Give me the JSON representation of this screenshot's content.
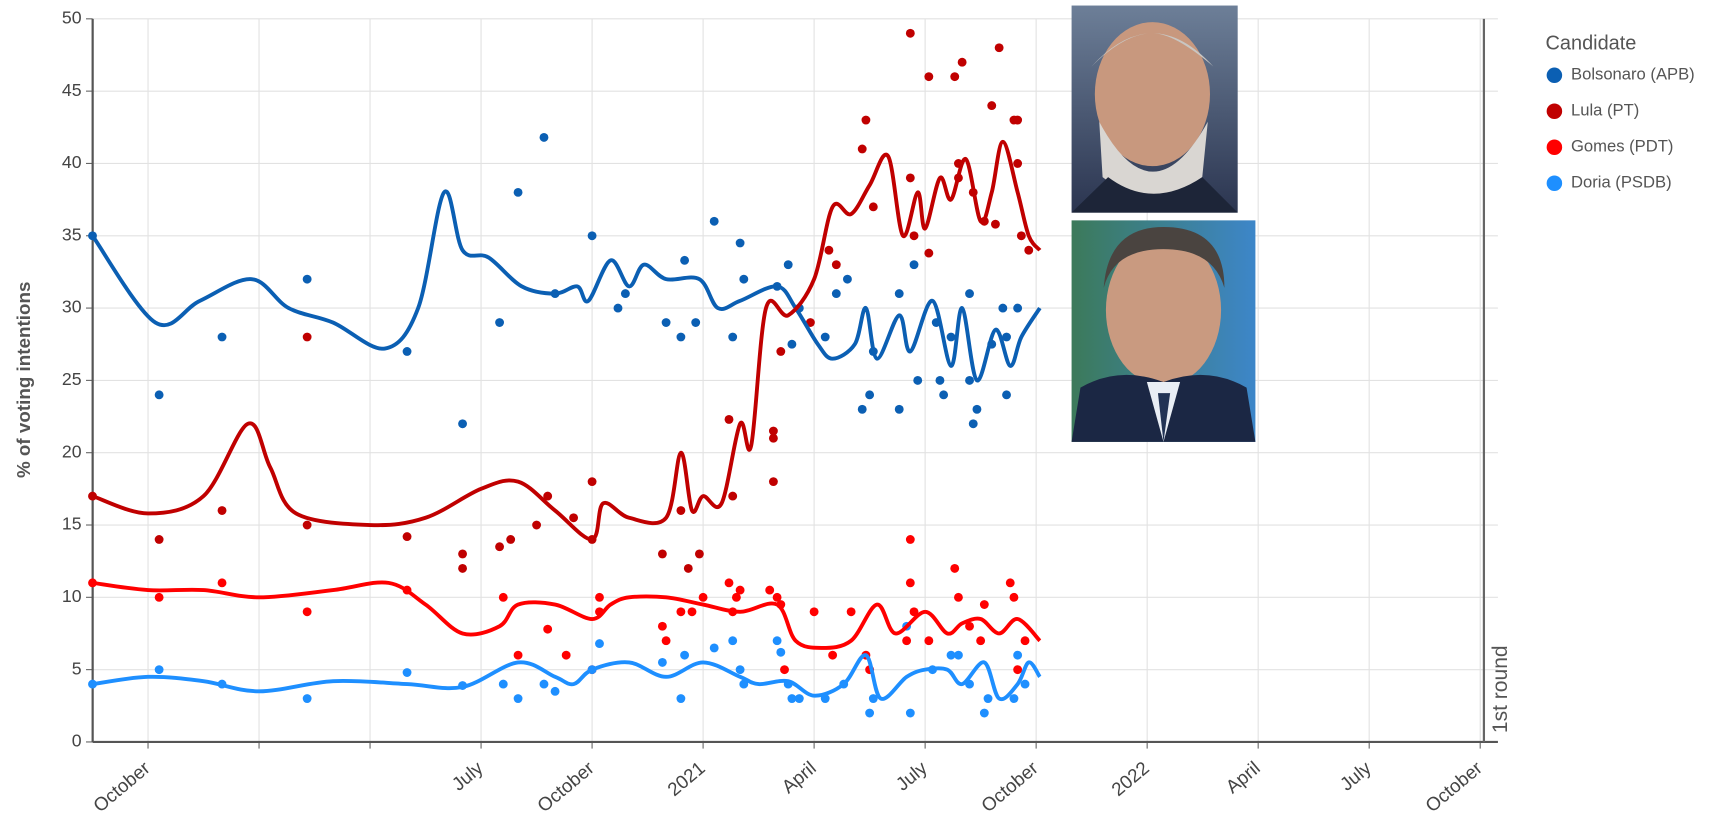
{
  "chart_data": {
    "type": "line",
    "y_label": "% of voting intentions",
    "legend_title": "Candidate",
    "legend_position": "right",
    "grid": true,
    "xlim": [
      -1.5,
      36.1
    ],
    "ylim": [
      0,
      50
    ],
    "yticks": [
      0,
      5,
      10,
      15,
      20,
      25,
      30,
      35,
      40,
      45,
      50
    ],
    "xticks": [
      {
        "value": 0,
        "label": "October"
      },
      {
        "value": 3,
        "label": null
      },
      {
        "value": 6,
        "label": null
      },
      {
        "value": 9,
        "label": "July"
      },
      {
        "value": 12,
        "label": "October"
      },
      {
        "value": 15,
        "label": "2021"
      },
      {
        "value": 18,
        "label": "April"
      },
      {
        "value": 21,
        "label": "July"
      },
      {
        "value": 24,
        "label": "October"
      },
      {
        "value": 27,
        "label": "2022"
      },
      {
        "value": 30,
        "label": "April"
      },
      {
        "value": 33,
        "label": "July"
      },
      {
        "value": 36,
        "label": "October"
      }
    ],
    "annotations": [
      {
        "x": 36.1,
        "text": "1st round"
      }
    ],
    "series": [
      {
        "name": "Bolsonaro (APB)",
        "color": "#0b5fb3",
        "x": [
          -1.5,
          0.3,
          2,
          4.3,
          7,
          8.5,
          9.5,
          10,
          10.7,
          11,
          12,
          12.7,
          12.9,
          14,
          14.5,
          14.4,
          14.8,
          15.3,
          15.8,
          16,
          16.1,
          17,
          17.3,
          17.4,
          17.6,
          18.3,
          18.6,
          18.9,
          19.3,
          19.5,
          19.6,
          20.3,
          20.3,
          20.7,
          20.8,
          21.3,
          21.4,
          21.5,
          21.7,
          22.2,
          22.3,
          22.4,
          22.2,
          22.8,
          23.1,
          23.2,
          23.2,
          23.5
        ],
        "values": [
          35,
          24,
          28,
          32,
          27,
          22,
          29,
          38,
          41.8,
          31,
          35,
          30,
          31,
          29,
          33.3,
          28,
          29,
          36,
          28,
          34.5,
          32,
          31.5,
          33,
          27.5,
          30,
          28,
          31,
          32,
          23,
          24,
          27,
          23,
          31,
          33,
          25,
          29,
          25,
          24,
          28,
          31,
          22,
          23,
          25,
          27.5,
          30,
          24,
          28,
          30
        ],
        "trend": {
          "x": [
            -1.5,
            0.2,
            1.4,
            2.8,
            3.8,
            5,
            6.4,
            7.3,
            8,
            8.5,
            9.2,
            10.1,
            11,
            11.6,
            11.9,
            12.5,
            13,
            13.4,
            14,
            14.9,
            15.4,
            16,
            17,
            17.5,
            18.1,
            18.5,
            19.1,
            19.4,
            19.7,
            20.3,
            20.6,
            21.2,
            21.7,
            22,
            22.4,
            22.9,
            23.3,
            23.6,
            24.1
          ],
          "values": [
            35,
            29,
            30.5,
            32,
            30,
            29,
            27.2,
            30,
            38,
            34,
            33.5,
            31.5,
            31,
            31.5,
            30.5,
            33.3,
            31.5,
            33,
            32,
            32,
            30,
            30.5,
            31.5,
            30,
            27.5,
            26.5,
            27.5,
            30,
            26.5,
            29.5,
            27,
            30.5,
            26,
            30,
            25,
            28.5,
            26,
            28,
            30
          ]
        }
      },
      {
        "name": "Lula (PT)",
        "color": "#c00000",
        "x": [
          -1.5,
          0.3,
          2,
          4.3,
          4.3,
          7,
          8.5,
          8.5,
          9.5,
          9.8,
          10.5,
          10.8,
          11.5,
          12,
          12,
          13.9,
          14.4,
          14.6,
          14.9,
          15.7,
          15.8,
          16.9,
          16.9,
          16.9,
          17.1,
          17.9,
          18.4,
          18.6,
          19.3,
          19.4,
          19.6,
          20.6,
          20.6,
          20.7,
          21.1,
          21.1,
          21.8,
          21.9,
          21.9,
          22,
          22.3,
          22.6,
          22.8,
          22.9,
          23,
          23.4,
          23.5,
          23.5,
          23.6,
          23.8
        ],
        "values": [
          17,
          14,
          16,
          28,
          15,
          14.2,
          13,
          12,
          13.5,
          14,
          15,
          17,
          15.5,
          18,
          14,
          13,
          16,
          12,
          13,
          22.3,
          17,
          21.5,
          21,
          18,
          27,
          29,
          34,
          33,
          41,
          43,
          37,
          49,
          39,
          35,
          46,
          33.8,
          46,
          39,
          40,
          47,
          38,
          36,
          44,
          35.8,
          48,
          43,
          43,
          40,
          35,
          34
        ],
        "trend": {
          "x": [
            -1.5,
            0,
            1.5,
            2.7,
            3.3,
            4,
            6,
            7.5,
            9,
            10,
            11,
            12,
            12.3,
            13,
            14,
            14.4,
            14.7,
            15,
            15.5,
            16,
            16.3,
            16.7,
            17.3,
            18,
            18.5,
            19,
            19.5,
            20,
            20.4,
            20.8,
            21,
            21.4,
            21.7,
            22.1,
            22.5,
            22.8,
            23.1,
            23.5,
            23.8,
            24.1
          ],
          "values": [
            17,
            15.8,
            17,
            22,
            19,
            15.8,
            15,
            15.5,
            17.5,
            18,
            16,
            14,
            16.5,
            15.5,
            15.5,
            20,
            16,
            17,
            16.5,
            22,
            20.5,
            30,
            29.5,
            32,
            37,
            36.5,
            38.5,
            40.5,
            35,
            38,
            35.5,
            39,
            37.5,
            40.3,
            36,
            38,
            41.5,
            38,
            35,
            34
          ]
        }
      },
      {
        "name": "Gomes (PDT)",
        "color": "#ff0000",
        "x": [
          -1.5,
          0.3,
          2,
          4.3,
          7,
          9.6,
          10,
          10.8,
          11.3,
          12,
          12.2,
          12.2,
          13.9,
          14,
          14.4,
          14.7,
          15,
          15.7,
          15.8,
          15.9,
          16,
          16.8,
          17,
          17.1,
          17.2,
          18,
          18.5,
          19,
          19.4,
          19.5,
          20.5,
          20.6,
          20.6,
          20.7,
          21.1,
          21.8,
          21.9,
          22.2,
          22.5,
          22.6,
          23.3,
          23.4,
          23.5,
          23.7
        ],
        "values": [
          11,
          10,
          11,
          9,
          10.5,
          10,
          6,
          7.8,
          6,
          5,
          9,
          10,
          8,
          7,
          9,
          9,
          10,
          11,
          9,
          10,
          10.5,
          10.5,
          10,
          9.5,
          5,
          9,
          6,
          9,
          6,
          5,
          7,
          14,
          11,
          9,
          7,
          12,
          10,
          8,
          7,
          9.5,
          11,
          10,
          5,
          7
        ],
        "trend": {
          "x": [
            -1.5,
            0,
            1.5,
            3,
            5,
            6.5,
            7.5,
            8.5,
            9.5,
            10,
            11,
            12,
            12.5,
            13,
            14,
            15,
            16,
            17,
            17.5,
            18.2,
            19,
            19.7,
            20.2,
            21,
            21.6,
            22,
            22.5,
            23,
            23.5,
            24.1
          ],
          "values": [
            11,
            10.5,
            10.5,
            10,
            10.5,
            11,
            9.5,
            7.5,
            8,
            9.5,
            9.5,
            8.5,
            9.5,
            10,
            10,
            9.5,
            9,
            9.5,
            7,
            6.5,
            7,
            9.5,
            7.5,
            9,
            7.5,
            8.2,
            8.5,
            7.5,
            8.5,
            7
          ]
        }
      },
      {
        "name": "Doria (PSDB)",
        "color": "#1e8fff",
        "x": [
          -1.5,
          0.3,
          2,
          4.3,
          7,
          8.5,
          9.6,
          10,
          10.7,
          11,
          12,
          12.2,
          13.9,
          14.4,
          14.5,
          15.3,
          15.8,
          16,
          16.1,
          17,
          17.1,
          17.3,
          17.4,
          17.6,
          18.3,
          18.8,
          19.5,
          19.6,
          20.6,
          20.5,
          21.2,
          21.7,
          21.9,
          22.2,
          22.6,
          22.7,
          23.4,
          23.5,
          23.7
        ],
        "values": [
          4,
          5,
          4,
          3,
          4.8,
          3.9,
          4,
          3,
          4,
          3.5,
          5,
          6.8,
          5.5,
          3,
          6,
          6.5,
          7,
          5,
          4,
          7,
          6.2,
          4,
          3,
          3,
          3,
          4,
          2,
          3,
          2,
          8,
          5,
          6,
          6,
          4,
          2,
          3,
          3,
          6,
          4
        ],
        "trend": {
          "x": [
            -1.5,
            0,
            1.5,
            3,
            5,
            7,
            8.5,
            10,
            11,
            11.5,
            12,
            13,
            14,
            15,
            16,
            16.5,
            17.3,
            18,
            18.8,
            19.4,
            19.8,
            20.5,
            21,
            21.6,
            22,
            22.6,
            23,
            23.5,
            23.8,
            24.1
          ],
          "values": [
            4,
            4.5,
            4.2,
            3.5,
            4.2,
            4,
            3.8,
            5.5,
            4.5,
            4,
            5,
            5.5,
            4.5,
            5.5,
            4.5,
            4,
            4.2,
            3.2,
            4,
            6,
            3,
            4.5,
            5,
            5,
            4,
            5.5,
            3,
            4,
            5.5,
            4.5
          ]
        }
      }
    ]
  }
}
